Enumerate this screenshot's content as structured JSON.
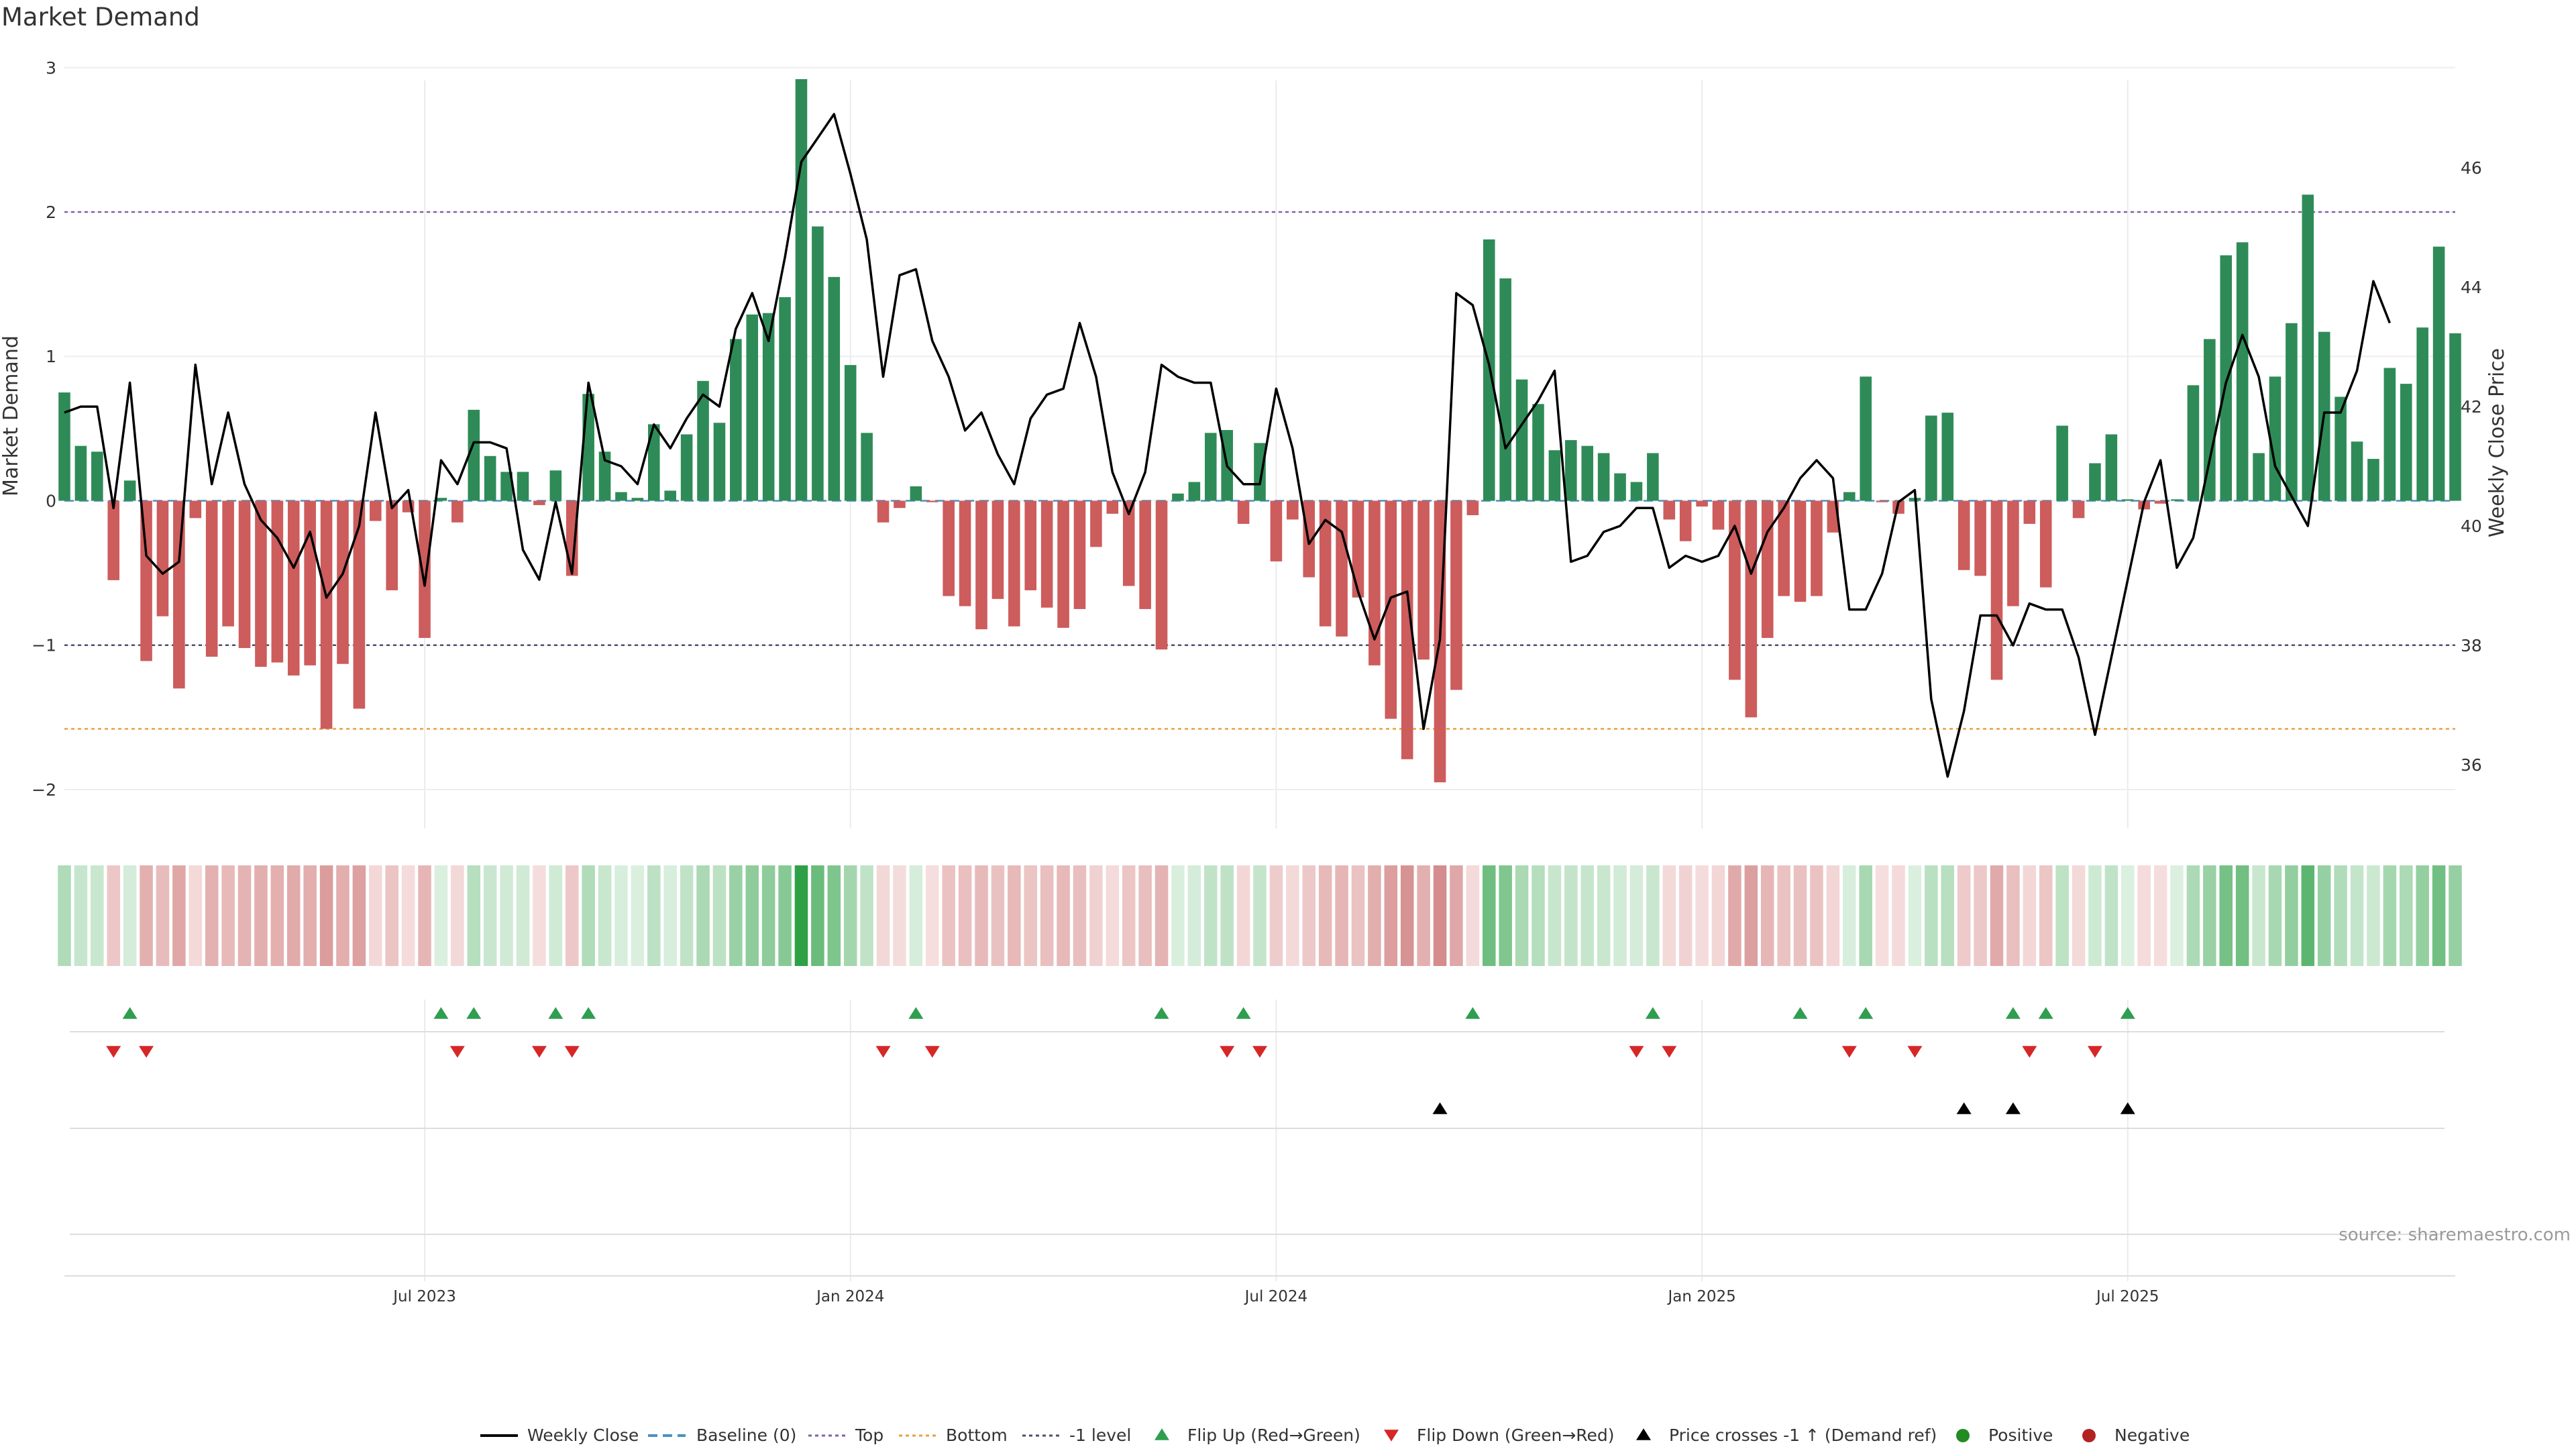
{
  "chart_data": {
    "type": "bar",
    "title": "Market Demand",
    "ylabel": "Market Demand",
    "y2label": "Weekly Close Price",
    "ylim": [
      -2.2,
      3.05
    ],
    "y2lim": [
      35.1,
      47.8
    ],
    "yticks": [
      3,
      2,
      1,
      0,
      -1,
      -2
    ],
    "ytick_labels": [
      "3",
      "2",
      "1",
      "0",
      "−1",
      "−2"
    ],
    "y2ticks": [
      46,
      44,
      42,
      40,
      38,
      36
    ],
    "y2tick_labels": [
      "46",
      "44",
      "42",
      "40",
      "38",
      "36"
    ],
    "xtick_index": [
      22,
      48,
      74,
      100,
      126
    ],
    "xtick_labels": [
      "Jul 2023",
      "Jan 2024",
      "Jul 2024",
      "Jan 2025",
      "Jul 2025"
    ],
    "demand": [
      0.75,
      0.38,
      0.34,
      -0.55,
      0.14,
      -1.11,
      -0.8,
      -1.3,
      -0.12,
      -1.08,
      -0.87,
      -1.02,
      -1.15,
      -1.12,
      -1.21,
      -1.14,
      -1.58,
      -1.13,
      -1.44,
      -0.14,
      -0.62,
      -0.08,
      -0.95,
      0.02,
      -0.15,
      0.63,
      0.31,
      0.2,
      0.2,
      -0.03,
      0.21,
      -0.52,
      0.74,
      0.34,
      0.06,
      0.02,
      0.53,
      0.07,
      0.46,
      0.83,
      0.54,
      1.12,
      1.29,
      1.3,
      1.41,
      2.92,
      1.9,
      1.55,
      0.94,
      0.47,
      -0.15,
      -0.05,
      0.1,
      -0.01,
      -0.66,
      -0.73,
      -0.89,
      -0.68,
      -0.87,
      -0.62,
      -0.74,
      -0.88,
      -0.75,
      -0.32,
      -0.09,
      -0.59,
      -0.75,
      -1.03,
      0.05,
      0.13,
      0.47,
      0.49,
      -0.16,
      0.4,
      -0.42,
      -0.13,
      -0.53,
      -0.87,
      -0.94,
      -0.67,
      -1.14,
      -1.51,
      -1.79,
      -1.1,
      -1.95,
      -1.31,
      -0.1,
      1.81,
      1.54,
      0.84,
      0.67,
      0.35,
      0.42,
      0.38,
      0.33,
      0.19,
      0.13,
      0.33,
      -0.13,
      -0.28,
      -0.04,
      -0.2,
      -1.24,
      -1.5,
      -0.95,
      -0.66,
      -0.7,
      -0.66,
      -0.22,
      0.06,
      0.86,
      -0.01,
      -0.09,
      0.02,
      0.59,
      0.61,
      -0.48,
      -0.52,
      -1.24,
      -0.73,
      -0.16,
      -0.6,
      0.52,
      -0.12,
      0.26,
      0.46,
      0.01,
      -0.06,
      -0.02,
      0.01,
      0.8,
      1.12,
      1.7,
      1.79,
      0.33,
      0.86,
      1.23,
      2.12,
      1.17,
      0.72,
      0.41,
      0.29,
      0.92,
      0.81,
      1.2,
      1.76,
      1.16
    ],
    "close": [
      41.9,
      42.0,
      42.0,
      40.3,
      42.4,
      39.5,
      39.2,
      39.4,
      42.7,
      40.7,
      41.9,
      40.7,
      40.1,
      39.8,
      39.3,
      39.9,
      38.8,
      39.2,
      40.0,
      41.9,
      40.3,
      40.6,
      39.0,
      41.1,
      40.7,
      41.4,
      41.4,
      41.3,
      39.6,
      39.1,
      40.4,
      39.2,
      42.4,
      41.1,
      41.0,
      40.7,
      41.7,
      41.3,
      41.8,
      42.2,
      42.0,
      43.3,
      43.9,
      43.1,
      44.5,
      46.1,
      46.5,
      46.9,
      45.9,
      44.8,
      42.5,
      44.2,
      44.3,
      43.1,
      42.5,
      41.6,
      41.9,
      41.2,
      40.7,
      41.8,
      42.2,
      42.3,
      43.4,
      42.5,
      40.9,
      40.2,
      40.9,
      42.7,
      42.5,
      42.4,
      42.4,
      41.0,
      40.7,
      40.7,
      42.3,
      41.3,
      39.7,
      40.1,
      39.9,
      38.9,
      38.1,
      38.8,
      38.9,
      36.6,
      38.1,
      43.9,
      43.7,
      42.7,
      41.3,
      41.7,
      42.1,
      42.6,
      39.4,
      39.5,
      39.9,
      40.0,
      40.3,
      40.3,
      39.3,
      39.5,
      39.4,
      39.5,
      40.0,
      39.2,
      39.9,
      40.3,
      40.8,
      41.1,
      40.8,
      38.6,
      38.6,
      39.2,
      40.4,
      40.6,
      37.1,
      35.8,
      36.9,
      38.5,
      38.5,
      38.0,
      38.7,
      38.6,
      38.6,
      37.8,
      36.5,
      37.8,
      39.1,
      40.4,
      41.1,
      39.3,
      39.8,
      41.1,
      42.4,
      43.2,
      42.5,
      41.0,
      40.5,
      40.0,
      41.9,
      41.9,
      42.6,
      44.1,
      43.4
    ],
    "levels": {
      "top": 2,
      "bottom": -1.58,
      "minus_one": -1
    },
    "flip_up_index": [
      4,
      23,
      25,
      30,
      32,
      52,
      67,
      72,
      86,
      97,
      106,
      110,
      119,
      121,
      126
    ],
    "flip_down_index": [
      3,
      5,
      24,
      29,
      31,
      50,
      53,
      71,
      73,
      96,
      98,
      109,
      113,
      120,
      124
    ],
    "price_cross_index": [
      84,
      116,
      119,
      126
    ],
    "legend": [
      "Weekly Close",
      "Baseline (0)",
      "Top",
      "Bottom",
      "-1 level",
      "Flip Up (Red→Green)",
      "Flip Down (Green→Red)",
      "Price crosses -1 ↑ (Demand ref)",
      "Positive",
      "Negative"
    ],
    "colors": {
      "positive_bar": "#2e8b57",
      "negative_bar": "#cd5c5c",
      "close_line": "#000000",
      "baseline": "#4a90c2",
      "top": "#8062a3",
      "bottom": "#e8a040",
      "minus_one": "#4d4d6e",
      "flip_up": "#2e9e4f",
      "flip_down": "#d62728",
      "price_cross": "#000000",
      "positive_dot": "#228b22",
      "negative_dot": "#b22222"
    }
  },
  "source_text": "source: sharemaestro.com"
}
